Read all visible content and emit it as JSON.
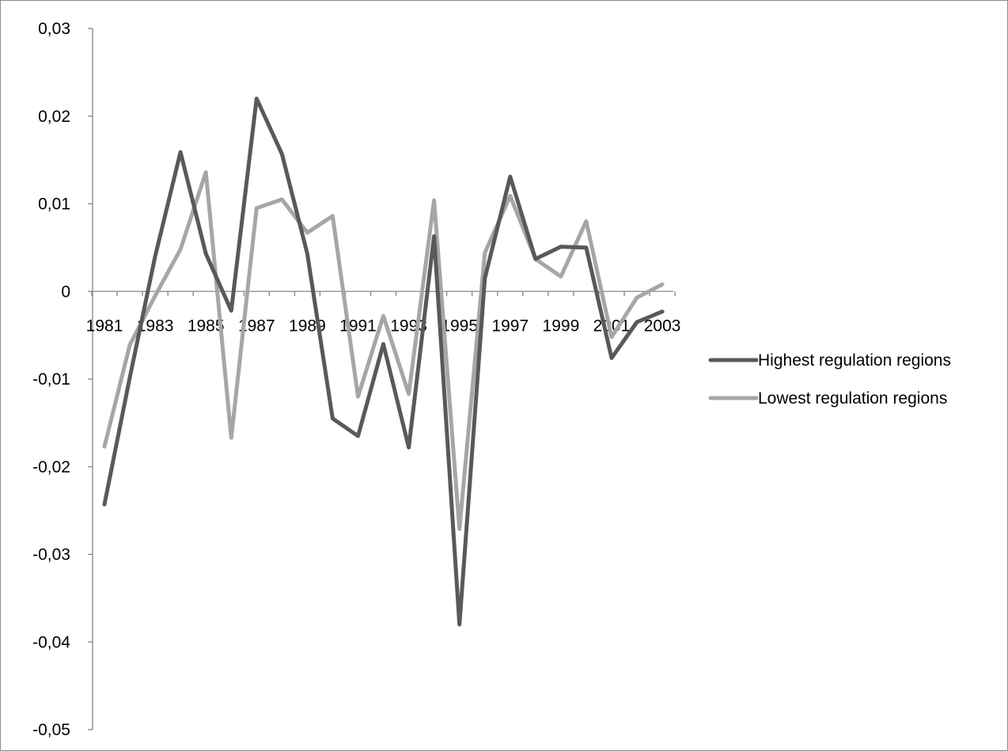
{
  "chart_data": {
    "type": "line",
    "title": "",
    "xlabel": "",
    "ylabel": "",
    "x": [
      1981,
      1982,
      1983,
      1984,
      1985,
      1986,
      1987,
      1988,
      1989,
      1990,
      1991,
      1992,
      1993,
      1994,
      1995,
      1996,
      1997,
      1998,
      1999,
      2000,
      2001,
      2002,
      2003
    ],
    "x_tick_labels": [
      "1981",
      "1983",
      "1985",
      "1987",
      "1989",
      "1991",
      "1993",
      "1995",
      "1997",
      "1999",
      "2001",
      "2003"
    ],
    "y_tick_labels": [
      "0,03",
      "0,02",
      "0,01",
      "0",
      "-0,01",
      "-0,02",
      "-0,03",
      "-0,04",
      "-0,05"
    ],
    "y_tick_values": [
      0.03,
      0.02,
      0.01,
      0,
      -0.01,
      -0.02,
      -0.03,
      -0.04,
      -0.05
    ],
    "ylim": [
      -0.05,
      0.03
    ],
    "grid": false,
    "legend_position": "right",
    "series": [
      {
        "name": "Highest regulation regions",
        "color": "#595959",
        "values": [
          -0.0243,
          -0.0098,
          0.004,
          0.0159,
          0.0043,
          -0.0022,
          0.022,
          0.0157,
          0.0043,
          -0.0145,
          -0.0165,
          -0.006,
          -0.0178,
          0.0063,
          -0.038,
          0.0015,
          0.0131,
          0.0037,
          0.0051,
          0.005,
          -0.0076,
          -0.0035,
          -0.0023
        ]
      },
      {
        "name": "Lowest regulation regions",
        "color": "#a6a6a6",
        "values": [
          -0.0177,
          -0.0061,
          -0.0005,
          0.0048,
          0.0136,
          -0.0167,
          0.0095,
          0.0105,
          0.0067,
          0.0086,
          -0.012,
          -0.0028,
          -0.0117,
          0.0104,
          -0.0271,
          0.0044,
          0.0109,
          0.0037,
          0.0017,
          0.008,
          -0.0052,
          -0.0007,
          0.0008
        ]
      }
    ]
  }
}
